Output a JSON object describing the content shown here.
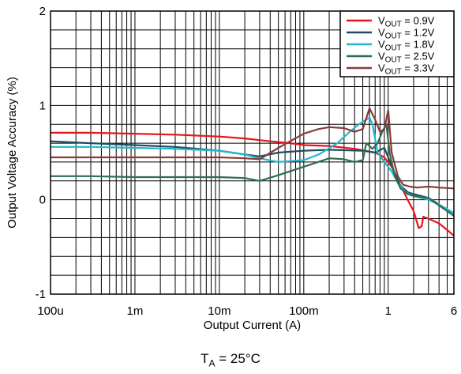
{
  "note": {
    "prefix": "T",
    "sub": "A",
    "rest": " = 25°C"
  },
  "chart_data": {
    "type": "line",
    "xlabel": "Output Current (A)",
    "ylabel": "Output Voltage Accuracy (%)",
    "x_scale": "log",
    "xlim": [
      0.0001,
      6
    ],
    "ylim": [
      -1,
      2
    ],
    "grid": true,
    "legend_position": "top-right",
    "x_ticks": [
      {
        "value": 0.0001,
        "label": "100u"
      },
      {
        "value": 0.001,
        "label": "1m"
      },
      {
        "value": 0.01,
        "label": "10m"
      },
      {
        "value": 0.1,
        "label": "100m"
      },
      {
        "value": 1,
        "label": "1"
      },
      {
        "value": 6,
        "label": "6"
      }
    ],
    "y_ticks": [
      {
        "value": -1,
        "label": "-1"
      },
      {
        "value": 0,
        "label": "0"
      },
      {
        "value": 1,
        "label": "1"
      },
      {
        "value": 2,
        "label": "2"
      }
    ],
    "series": [
      {
        "name": "VOUT = 0.9V",
        "legend": {
          "main": "V",
          "sub": "OUT",
          "rest": " = 0.9V"
        },
        "color": "#e8141c",
        "points": [
          [
            0.0001,
            0.71
          ],
          [
            0.0003,
            0.71
          ],
          [
            0.001,
            0.7
          ],
          [
            0.003,
            0.69
          ],
          [
            0.01,
            0.67
          ],
          [
            0.02,
            0.65
          ],
          [
            0.04,
            0.62
          ],
          [
            0.07,
            0.6
          ],
          [
            0.1,
            0.58
          ],
          [
            0.2,
            0.57
          ],
          [
            0.4,
            0.54
          ],
          [
            0.7,
            0.5
          ],
          [
            0.9,
            0.45
          ],
          [
            1.1,
            0.35
          ],
          [
            1.3,
            0.2
          ],
          [
            1.5,
            0.1
          ],
          [
            1.7,
            0.0
          ],
          [
            2.0,
            -0.12
          ],
          [
            2.3,
            -0.3
          ],
          [
            2.5,
            -0.28
          ],
          [
            2.6,
            -0.18
          ],
          [
            3,
            -0.2
          ],
          [
            4,
            -0.25
          ],
          [
            5,
            -0.32
          ],
          [
            6,
            -0.38
          ]
        ]
      },
      {
        "name": "VOUT = 1.2V",
        "legend": {
          "main": "V",
          "sub": "OUT",
          "rest": " = 1.2V"
        },
        "color": "#1e4d5e",
        "points": [
          [
            0.0001,
            0.62
          ],
          [
            0.0003,
            0.6
          ],
          [
            0.001,
            0.58
          ],
          [
            0.003,
            0.56
          ],
          [
            0.01,
            0.52
          ],
          [
            0.02,
            0.48
          ],
          [
            0.03,
            0.46
          ],
          [
            0.05,
            0.5
          ],
          [
            0.1,
            0.52
          ],
          [
            0.2,
            0.53
          ],
          [
            0.5,
            0.52
          ],
          [
            0.7,
            0.5
          ],
          [
            0.9,
            0.55
          ],
          [
            1.0,
            0.45
          ],
          [
            1.2,
            0.28
          ],
          [
            1.4,
            0.15
          ],
          [
            1.7,
            0.08
          ],
          [
            2,
            0.06
          ],
          [
            3,
            0.02
          ],
          [
            4,
            -0.05
          ],
          [
            6,
            -0.17
          ]
        ]
      },
      {
        "name": "VOUT = 1.8V",
        "legend": {
          "main": "V",
          "sub": "OUT",
          "rest": " = 1.8V"
        },
        "color": "#1fb7cf",
        "points": [
          [
            0.0001,
            0.56
          ],
          [
            0.0003,
            0.56
          ],
          [
            0.001,
            0.55
          ],
          [
            0.003,
            0.54
          ],
          [
            0.01,
            0.52
          ],
          [
            0.02,
            0.48
          ],
          [
            0.03,
            0.44
          ],
          [
            0.05,
            0.4
          ],
          [
            0.1,
            0.42
          ],
          [
            0.15,
            0.48
          ],
          [
            0.25,
            0.6
          ],
          [
            0.35,
            0.72
          ],
          [
            0.45,
            0.8
          ],
          [
            0.55,
            0.85
          ],
          [
            0.6,
            0.87
          ],
          [
            0.65,
            0.8
          ],
          [
            0.75,
            0.5
          ],
          [
            0.9,
            0.4
          ],
          [
            1.1,
            0.3
          ],
          [
            1.3,
            0.18
          ],
          [
            1.6,
            0.08
          ],
          [
            2,
            0.04
          ],
          [
            3,
            0.0
          ],
          [
            4,
            -0.05
          ],
          [
            6,
            -0.14
          ]
        ]
      },
      {
        "name": "VOUT = 2.5V",
        "legend": {
          "main": "V",
          "sub": "OUT",
          "rest": " = 2.5V"
        },
        "color": "#2f6e4f",
        "points": [
          [
            0.0001,
            0.25
          ],
          [
            0.0003,
            0.25
          ],
          [
            0.001,
            0.24
          ],
          [
            0.003,
            0.24
          ],
          [
            0.01,
            0.24
          ],
          [
            0.02,
            0.23
          ],
          [
            0.03,
            0.2
          ],
          [
            0.05,
            0.26
          ],
          [
            0.1,
            0.35
          ],
          [
            0.2,
            0.44
          ],
          [
            0.3,
            0.43
          ],
          [
            0.4,
            0.4
          ],
          [
            0.5,
            0.42
          ],
          [
            0.55,
            0.6
          ],
          [
            0.65,
            0.54
          ],
          [
            0.75,
            0.6
          ],
          [
            0.85,
            0.72
          ],
          [
            0.95,
            0.8
          ],
          [
            1.05,
            0.48
          ],
          [
            1.2,
            0.25
          ],
          [
            1.4,
            0.12
          ],
          [
            1.7,
            0.06
          ],
          [
            2,
            0.04
          ],
          [
            3,
            0.02
          ],
          [
            4,
            -0.06
          ],
          [
            6,
            -0.17
          ]
        ]
      },
      {
        "name": "VOUT = 3.3V",
        "legend": {
          "main": "V",
          "sub": "OUT",
          "rest": " = 3.3V"
        },
        "color": "#8b3a3a",
        "points": [
          [
            0.0001,
            0.45
          ],
          [
            0.0003,
            0.45
          ],
          [
            0.001,
            0.45
          ],
          [
            0.003,
            0.45
          ],
          [
            0.01,
            0.45
          ],
          [
            0.02,
            0.44
          ],
          [
            0.03,
            0.43
          ],
          [
            0.05,
            0.55
          ],
          [
            0.1,
            0.7
          ],
          [
            0.15,
            0.75
          ],
          [
            0.2,
            0.77
          ],
          [
            0.3,
            0.76
          ],
          [
            0.4,
            0.72
          ],
          [
            0.5,
            0.75
          ],
          [
            0.6,
            0.97
          ],
          [
            0.7,
            0.85
          ],
          [
            0.8,
            0.72
          ],
          [
            0.9,
            0.75
          ],
          [
            1.0,
            0.95
          ],
          [
            1.1,
            0.5
          ],
          [
            1.3,
            0.25
          ],
          [
            1.5,
            0.16
          ],
          [
            1.8,
            0.14
          ],
          [
            2.2,
            0.13
          ],
          [
            3,
            0.14
          ],
          [
            4,
            0.13
          ],
          [
            6,
            0.12
          ]
        ]
      }
    ]
  }
}
